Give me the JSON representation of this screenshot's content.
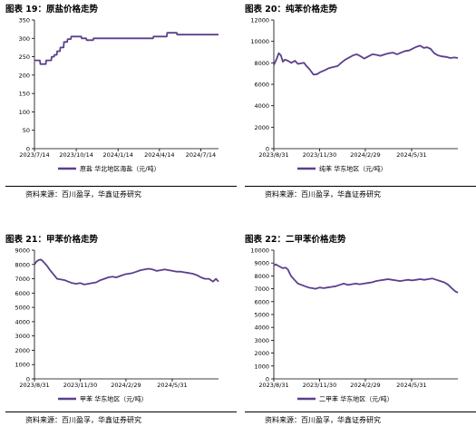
{
  "panels": [
    {
      "id": "p19",
      "title": "图表 19：原盐价格走势",
      "source": "资料来源：百川盈孚，华鑫证券研究"
    },
    {
      "id": "p20",
      "title": "图表 20：纯苯价格走势",
      "source": "资料来源：百川盈孚，华鑫证券研究"
    },
    {
      "id": "p21",
      "title": "图表 21：甲苯价格走势",
      "source": "资料来源：百川盈孚，华鑫证券研究"
    },
    {
      "id": "p22",
      "title": "图表 22：二甲苯价格走势",
      "source": "资料来源：百川盈孚，华鑫证券研究"
    }
  ],
  "chart_data": [
    {
      "type": "line",
      "legend_position": "bottom",
      "grid": false,
      "ylim": [
        0,
        350
      ],
      "yticks": [
        0,
        50,
        100,
        150,
        200,
        250,
        300,
        350
      ],
      "x_range": [
        "2023-07-14",
        "2024-08-22"
      ],
      "xtick_labels": [
        "2023/7/14",
        "2023/10/14",
        "2024/1/14",
        "2024/4/14",
        "2024/7/14"
      ],
      "xtick_dates": [
        "2023-07-14",
        "2023-10-14",
        "2024-01-14",
        "2024-04-14",
        "2024-07-14"
      ],
      "series": [
        {
          "name": "原盐 华北地区海盐（元/吨）",
          "color": "#5b3f8c",
          "x": [
            "2023-07-14",
            "2023-07-26",
            "2023-07-27",
            "2023-08-08",
            "2023-08-09",
            "2023-08-20",
            "2023-08-21",
            "2023-08-26",
            "2023-08-27",
            "2023-09-01",
            "2023-09-02",
            "2023-09-08",
            "2023-09-09",
            "2023-09-16",
            "2023-09-17",
            "2023-09-24",
            "2023-09-25",
            "2023-10-02",
            "2023-10-03",
            "2023-10-25",
            "2023-10-26",
            "2023-11-05",
            "2023-11-06",
            "2023-11-20",
            "2023-11-21",
            "2024-03-31",
            "2024-04-01",
            "2024-04-30",
            "2024-05-01",
            "2024-05-22",
            "2024-05-23",
            "2024-08-22"
          ],
          "y": [
            240,
            240,
            230,
            230,
            240,
            240,
            250,
            250,
            255,
            255,
            265,
            265,
            275,
            275,
            290,
            290,
            298,
            298,
            305,
            305,
            300,
            300,
            295,
            295,
            300,
            300,
            305,
            305,
            315,
            315,
            310,
            310
          ]
        }
      ]
    },
    {
      "type": "line",
      "legend_position": "bottom",
      "grid": false,
      "ylim": [
        0,
        12000
      ],
      "yticks": [
        0,
        2000,
        4000,
        6000,
        8000,
        10000,
        12000
      ],
      "x_range": [
        "2023-08-31",
        "2024-08-31"
      ],
      "xtick_labels": [
        "2023/8/31",
        "2023/11/30",
        "2024/2/29",
        "2024/5/31"
      ],
      "xtick_dates": [
        "2023-08-31",
        "2023-11-30",
        "2024-02-29",
        "2024-05-31"
      ],
      "series": [
        {
          "name": "纯苯 华东地区（元/吨）",
          "color": "#5b3f8c",
          "x": [
            "2023-08-31",
            "2023-09-05",
            "2023-09-10",
            "2023-09-14",
            "2023-09-18",
            "2023-09-22",
            "2023-09-28",
            "2023-10-05",
            "2023-10-12",
            "2023-10-18",
            "2023-10-24",
            "2023-10-30",
            "2023-11-04",
            "2023-11-10",
            "2023-11-18",
            "2023-11-25",
            "2023-12-02",
            "2023-12-10",
            "2023-12-18",
            "2023-12-26",
            "2024-01-05",
            "2024-01-12",
            "2024-01-20",
            "2024-01-28",
            "2024-02-05",
            "2024-02-12",
            "2024-02-20",
            "2024-02-27",
            "2024-03-06",
            "2024-03-14",
            "2024-03-22",
            "2024-03-30",
            "2024-04-08",
            "2024-04-16",
            "2024-04-24",
            "2024-05-02",
            "2024-05-10",
            "2024-05-18",
            "2024-05-26",
            "2024-06-03",
            "2024-06-10",
            "2024-06-17",
            "2024-06-24",
            "2024-07-01",
            "2024-07-08",
            "2024-07-15",
            "2024-07-22",
            "2024-07-30",
            "2024-08-08",
            "2024-08-16",
            "2024-08-24",
            "2024-08-31"
          ],
          "y": [
            7800,
            8300,
            8900,
            8700,
            8100,
            8300,
            8200,
            8000,
            8200,
            7900,
            7950,
            8000,
            7700,
            7400,
            6900,
            6950,
            7150,
            7300,
            7500,
            7600,
            7700,
            8000,
            8300,
            8500,
            8700,
            8800,
            8600,
            8400,
            8600,
            8800,
            8750,
            8650,
            8800,
            8900,
            8950,
            8800,
            8950,
            9100,
            9150,
            9350,
            9500,
            9600,
            9400,
            9450,
            9300,
            8900,
            8700,
            8600,
            8550,
            8450,
            8500,
            8450
          ]
        }
      ]
    },
    {
      "type": "line",
      "legend_position": "bottom",
      "grid": false,
      "ylim": [
        0,
        9000
      ],
      "yticks": [
        0,
        1000,
        2000,
        3000,
        4000,
        5000,
        6000,
        7000,
        8000,
        9000
      ],
      "x_range": [
        "2023-08-31",
        "2024-08-31"
      ],
      "xtick_labels": [
        "2023/8/31",
        "2023/11/30",
        "2024/2/29",
        "2024/5/31"
      ],
      "xtick_dates": [
        "2023-08-31",
        "2023-11-30",
        "2024-02-29",
        "2024-05-31"
      ],
      "series": [
        {
          "name": "甲苯 华东地区（元/吨）",
          "color": "#5b3f8c",
          "x": [
            "2023-08-31",
            "2023-09-04",
            "2023-09-08",
            "2023-09-12",
            "2023-09-16",
            "2023-09-20",
            "2023-09-25",
            "2023-10-01",
            "2023-10-08",
            "2023-10-15",
            "2023-10-22",
            "2023-10-30",
            "2023-11-06",
            "2023-11-14",
            "2023-11-22",
            "2023-11-30",
            "2023-12-08",
            "2023-12-16",
            "2023-12-24",
            "2024-01-01",
            "2024-01-09",
            "2024-01-17",
            "2024-01-25",
            "2024-02-02",
            "2024-02-10",
            "2024-02-18",
            "2024-02-26",
            "2024-03-05",
            "2024-03-13",
            "2024-03-21",
            "2024-03-29",
            "2024-04-06",
            "2024-04-14",
            "2024-04-22",
            "2024-04-30",
            "2024-05-08",
            "2024-05-16",
            "2024-05-24",
            "2024-06-01",
            "2024-06-09",
            "2024-06-17",
            "2024-06-25",
            "2024-07-03",
            "2024-07-11",
            "2024-07-19",
            "2024-07-27",
            "2024-08-04",
            "2024-08-12",
            "2024-08-20",
            "2024-08-26",
            "2024-08-31"
          ],
          "y": [
            8000,
            8200,
            8300,
            8350,
            8250,
            8100,
            7900,
            7600,
            7300,
            7000,
            6950,
            6900,
            6800,
            6700,
            6650,
            6700,
            6600,
            6650,
            6700,
            6750,
            6900,
            7000,
            7100,
            7150,
            7100,
            7200,
            7300,
            7350,
            7400,
            7500,
            7600,
            7650,
            7700,
            7650,
            7550,
            7600,
            7650,
            7600,
            7550,
            7500,
            7500,
            7450,
            7400,
            7350,
            7250,
            7100,
            7000,
            7000,
            6800,
            7000,
            6800
          ]
        }
      ]
    },
    {
      "type": "line",
      "legend_position": "bottom",
      "grid": false,
      "ylim": [
        0,
        10000
      ],
      "yticks": [
        0,
        1000,
        2000,
        3000,
        4000,
        5000,
        6000,
        7000,
        8000,
        9000,
        10000
      ],
      "x_range": [
        "2023-08-31",
        "2024-08-31"
      ],
      "xtick_labels": [
        "2023/8/31",
        "2023/11/30",
        "2024/2/29",
        "2024/5/31"
      ],
      "xtick_dates": [
        "2023-08-31",
        "2023-11-30",
        "2024-02-29",
        "2024-05-31"
      ],
      "series": [
        {
          "name": "二甲苯 华东地区（元/吨）",
          "color": "#5b3f8c",
          "x": [
            "2023-08-31",
            "2023-09-04",
            "2023-09-08",
            "2023-09-13",
            "2023-09-18",
            "2023-09-23",
            "2023-09-28",
            "2023-10-04",
            "2023-10-11",
            "2023-10-18",
            "2023-10-25",
            "2023-11-01",
            "2023-11-08",
            "2023-11-15",
            "2023-11-22",
            "2023-11-30",
            "2023-12-08",
            "2023-12-16",
            "2023-12-24",
            "2024-01-01",
            "2024-01-09",
            "2024-01-17",
            "2024-01-25",
            "2024-02-02",
            "2024-02-10",
            "2024-02-18",
            "2024-02-26",
            "2024-03-05",
            "2024-03-13",
            "2024-03-21",
            "2024-03-29",
            "2024-04-06",
            "2024-04-14",
            "2024-04-22",
            "2024-04-30",
            "2024-05-08",
            "2024-05-16",
            "2024-05-24",
            "2024-06-01",
            "2024-06-09",
            "2024-06-17",
            "2024-06-25",
            "2024-07-03",
            "2024-07-11",
            "2024-07-19",
            "2024-07-27",
            "2024-08-04",
            "2024-08-12",
            "2024-08-20",
            "2024-08-26",
            "2024-08-31"
          ],
          "y": [
            8800,
            8900,
            8800,
            8700,
            8600,
            8650,
            8500,
            8000,
            7700,
            7400,
            7300,
            7200,
            7100,
            7050,
            7000,
            7100,
            7050,
            7100,
            7150,
            7200,
            7300,
            7400,
            7300,
            7350,
            7400,
            7350,
            7400,
            7450,
            7500,
            7600,
            7650,
            7700,
            7750,
            7700,
            7650,
            7600,
            7650,
            7700,
            7650,
            7700,
            7750,
            7700,
            7750,
            7800,
            7700,
            7600,
            7500,
            7300,
            7000,
            6800,
            6700
          ]
        }
      ]
    }
  ]
}
